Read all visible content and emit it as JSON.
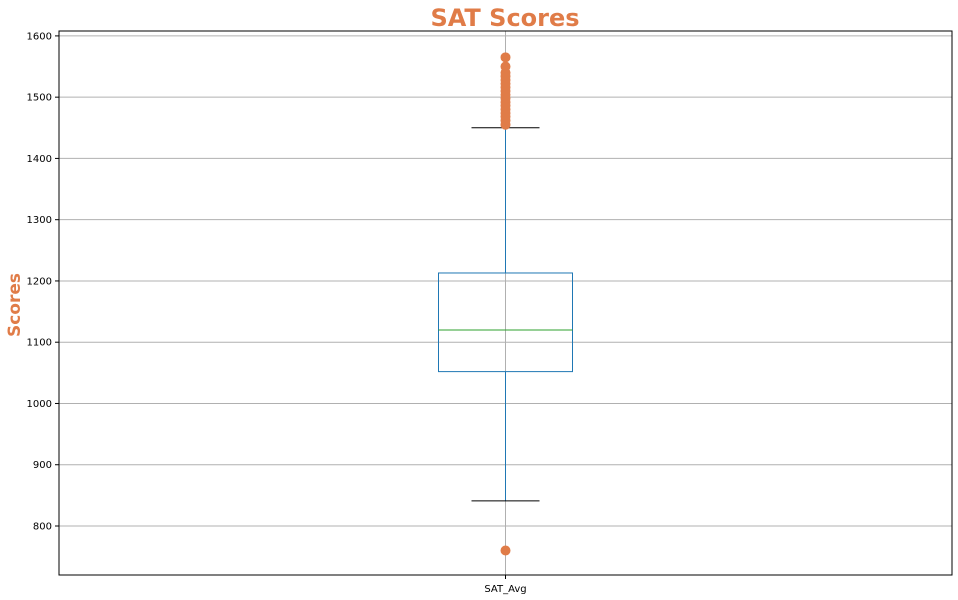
{
  "colors": {
    "accent": "#e07c48",
    "box": "#1f77b4",
    "median": "#2ca02c",
    "grid": "#b0b0b0",
    "frame": "#000000",
    "whisker_cap": "#000000",
    "outlier": "#e07c48"
  },
  "chart_data": {
    "type": "box",
    "title": "SAT Scores",
    "xlabel": "",
    "ylabel": "Scores",
    "ylim": [
      720,
      1608
    ],
    "yticks": [
      800,
      900,
      1000,
      1100,
      1200,
      1300,
      1400,
      1500,
      1600
    ],
    "ytick_labels": [
      "800",
      "900",
      "1000",
      "1100",
      "1200",
      "1300",
      "1400",
      "1500",
      "1600"
    ],
    "categories": [
      "SAT_Avg"
    ],
    "grid": true,
    "series": [
      {
        "name": "SAT_Avg",
        "whisker_low": 841,
        "q1": 1052,
        "median": 1120,
        "q3": 1213,
        "whisker_high": 1450,
        "outliers": [
          760,
          1455,
          1462,
          1468,
          1474,
          1480,
          1486,
          1492,
          1498,
          1504,
          1510,
          1516,
          1522,
          1528,
          1534,
          1540,
          1550,
          1565
        ]
      }
    ]
  }
}
